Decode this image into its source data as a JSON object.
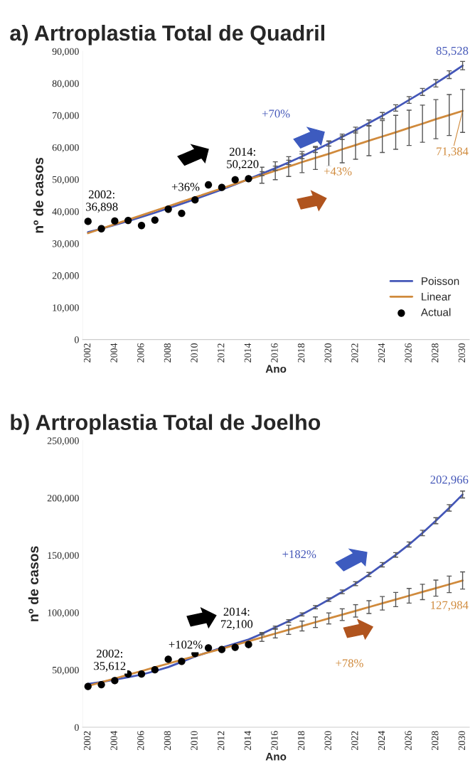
{
  "chart_data": [
    {
      "type": "line",
      "title": "a) Artroplastia Total de Quadril",
      "xlabel": "Ano",
      "ylabel": "nº de casos",
      "xlim": [
        2001.6,
        2030.5
      ],
      "xticks": [
        2002,
        2004,
        2006,
        2008,
        2010,
        2012,
        2014,
        2016,
        2018,
        2020,
        2022,
        2024,
        2026,
        2028,
        2030
      ],
      "ylim": [
        0,
        90000
      ],
      "yticks": [
        0,
        {
          "value": 10000,
          "label": "10,000"
        },
        {
          "value": 20000,
          "label": "20,000"
        },
        {
          "value": 30000,
          "label": "30,000"
        },
        {
          "value": 40000,
          "label": "40,000"
        },
        {
          "value": 50000,
          "label": "50,000"
        },
        {
          "value": 60000,
          "label": "60,000"
        },
        {
          "value": 70000,
          "label": "70,000"
        },
        {
          "value": 80000,
          "label": "80,000"
        },
        {
          "value": 90000,
          "label": "90,000"
        }
      ],
      "grid": false,
      "legend": "bottom right",
      "x": [
        2002,
        2003,
        2004,
        2005,
        2006,
        2007,
        2008,
        2009,
        2010,
        2011,
        2012,
        2013,
        2014,
        2015,
        2016,
        2017,
        2018,
        2019,
        2020,
        2021,
        2022,
        2023,
        2024,
        2025,
        2026,
        2027,
        2028,
        2029,
        2030
      ],
      "series": [
        {
          "name": "Poisson",
          "color": "#4457b8",
          "values": [
            33500,
            34600,
            35800,
            37000,
            38300,
            39600,
            41000,
            42400,
            43800,
            45300,
            46800,
            48400,
            50100,
            51800,
            53500,
            55300,
            57200,
            59200,
            61200,
            63300,
            65400,
            67600,
            69900,
            72300,
            74800,
            77300,
            80000,
            82700,
            85528
          ],
          "errors": [
            null,
            null,
            null,
            null,
            null,
            null,
            null,
            null,
            null,
            null,
            null,
            null,
            null,
            600,
            650,
            700,
            750,
            800,
            800,
            850,
            900,
            950,
            1000,
            1000,
            1050,
            1100,
            1150,
            1200,
            1300
          ]
        },
        {
          "name": "Linear",
          "color": "#d08a3c",
          "values": [
            33200,
            34600,
            36000,
            37400,
            38800,
            40200,
            41600,
            43000,
            44400,
            45800,
            47200,
            48600,
            50000,
            51300,
            52700,
            54000,
            55400,
            56700,
            58000,
            59400,
            60700,
            62100,
            63400,
            64700,
            66100,
            67400,
            68800,
            70100,
            71384
          ],
          "errors": [
            null,
            null,
            null,
            null,
            null,
            null,
            null,
            null,
            null,
            null,
            null,
            null,
            null,
            2500,
            2800,
            3100,
            3300,
            3600,
            3900,
            4200,
            4400,
            4700,
            5000,
            5300,
            5500,
            5800,
            6100,
            6400,
            6700
          ]
        },
        {
          "name": "Actual",
          "type": "scatter",
          "marker": "circle",
          "color": "#000000",
          "x": [
            2002,
            2003,
            2004,
            2005,
            2006,
            2007,
            2008,
            2009,
            2010,
            2011,
            2012,
            2013,
            2014
          ],
          "values": [
            36898,
            34600,
            37000,
            37200,
            35600,
            37300,
            40700,
            39400,
            43600,
            48300,
            47500,
            49900,
            50220
          ]
        }
      ],
      "annotations": [
        {
          "text": "2002:\n36,898",
          "x": 2002,
          "y": 36898
        },
        {
          "text": "+36%",
          "x": 2009,
          "y": 42400
        },
        {
          "text": "2014:\n50,220",
          "x": 2014,
          "y": 50220
        },
        "+70%",
        "+43%",
        {
          "text": "85,528",
          "x": 2030,
          "y": 85528
        },
        {
          "text": "71,384",
          "x": 2030,
          "y": 71384
        }
      ]
    },
    {
      "type": "line",
      "title": "b) Artroplastia Total de Joelho",
      "xlabel": "Ano",
      "ylabel": "nº de casos",
      "xlim": [
        2001.6,
        2030.5
      ],
      "xticks": [
        2002,
        2004,
        2006,
        2008,
        2010,
        2012,
        2014,
        2016,
        2018,
        2020,
        2022,
        2024,
        2026,
        2028,
        2030
      ],
      "ylim": [
        0,
        250000
      ],
      "yticks": [
        0,
        {
          "value": 50000,
          "label": "50,000"
        },
        {
          "value": 100000,
          "label": "100,000"
        },
        {
          "value": 150000,
          "label": "150,000"
        },
        {
          "value": 200000,
          "label": "200,000"
        },
        {
          "value": 250000,
          "label": "250,000"
        }
      ],
      "grid": false,
      "x": [
        2002,
        2003,
        2004,
        2005,
        2006,
        2007,
        2008,
        2009,
        2010,
        2011,
        2012,
        2013,
        2014,
        2015,
        2016,
        2017,
        2018,
        2019,
        2020,
        2021,
        2022,
        2023,
        2024,
        2025,
        2026,
        2027,
        2028,
        2029,
        2030
      ],
      "series": [
        {
          "color": "#4457b8",
          "values": [
            37700,
            39500,
            41500,
            43600,
            45900,
            49000,
            52500,
            57000,
            61700,
            65500,
            69400,
            72900,
            76500,
            81600,
            87100,
            92600,
            98400,
            104700,
            111300,
            118100,
            125200,
            133200,
            141700,
            150300,
            159400,
            169400,
            180100,
            191300,
            202966
          ],
          "errors": [
            null,
            null,
            null,
            null,
            null,
            null,
            null,
            null,
            null,
            null,
            null,
            null,
            null,
            1000,
            1100,
            1200,
            1300,
            1400,
            1500,
            1600,
            1700,
            1800,
            1900,
            2000,
            2200,
            2400,
            2600,
            2800,
            3000
          ]
        },
        {
          "color": "#d08a3c",
          "values": [
            36000,
            39300,
            42500,
            45800,
            49000,
            52300,
            55500,
            58800,
            62000,
            65300,
            68500,
            71800,
            75000,
            78400,
            81700,
            85000,
            88300,
            91600,
            94900,
            98200,
            101500,
            104800,
            108100,
            111400,
            114700,
            118000,
            121300,
            124600,
            127984
          ],
          "errors": [
            null,
            null,
            null,
            null,
            null,
            null,
            null,
            null,
            null,
            null,
            null,
            null,
            null,
            3500,
            3800,
            4000,
            4300,
            4600,
            4800,
            5100,
            5400,
            5600,
            5900,
            6200,
            6400,
            6700,
            7000,
            7200,
            7500
          ]
        },
        {
          "type": "scatter",
          "marker": "circle",
          "color": "#000000",
          "x": [
            2002,
            2003,
            2004,
            2005,
            2006,
            2007,
            2008,
            2009,
            2010,
            2011,
            2012,
            2013,
            2014
          ],
          "values": [
            35612,
            37200,
            40700,
            46400,
            46400,
            50100,
            59300,
            57400,
            64300,
            69200,
            67800,
            69700,
            72100
          ]
        }
      ],
      "annotations": [
        {
          "text": "2002:\n35,612",
          "x": 2002,
          "y": 35612
        },
        {
          "text": "+102%",
          "x": 2009,
          "y": 57400
        },
        {
          "text": "2014:\n72,100",
          "x": 2014,
          "y": 72100
        },
        "+182%",
        "+78%",
        {
          "text": "202,966",
          "x": 2030,
          "y": 202966
        },
        {
          "text": "127,984",
          "x": 2030,
          "y": 127984
        }
      ]
    }
  ]
}
